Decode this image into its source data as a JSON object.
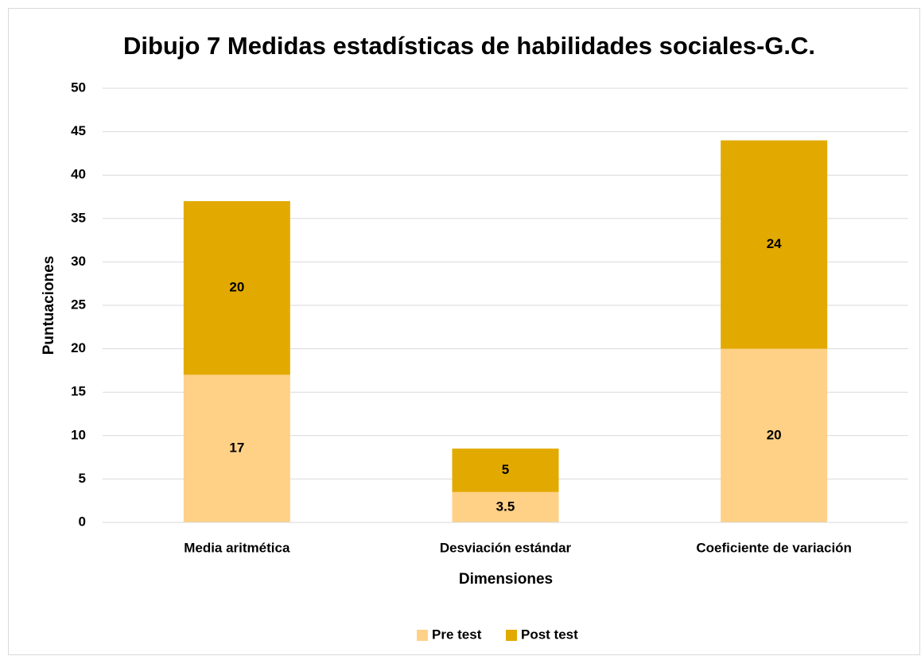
{
  "chart_data": {
    "type": "bar",
    "stacked": true,
    "title": "Dibujo 7 Medidas estadísticas de habilidades sociales-G.C.",
    "x_label": "Dimensiones",
    "y_label": "Puntuaciones",
    "categories": [
      "Media aritmética",
      "Desviación estándar",
      "Coeficiente de variación"
    ],
    "series": [
      {
        "name": "Pre test",
        "color": "#ffd186",
        "values": [
          17,
          3.5,
          20
        ]
      },
      {
        "name": "Post test",
        "color": "#e2aa00",
        "values": [
          20,
          5,
          24
        ]
      }
    ],
    "ylim": [
      0,
      50
    ],
    "yticks": [
      0,
      5,
      10,
      15,
      20,
      25,
      30,
      35,
      40,
      45,
      50
    ],
    "grid": true,
    "legend": "bottom"
  }
}
